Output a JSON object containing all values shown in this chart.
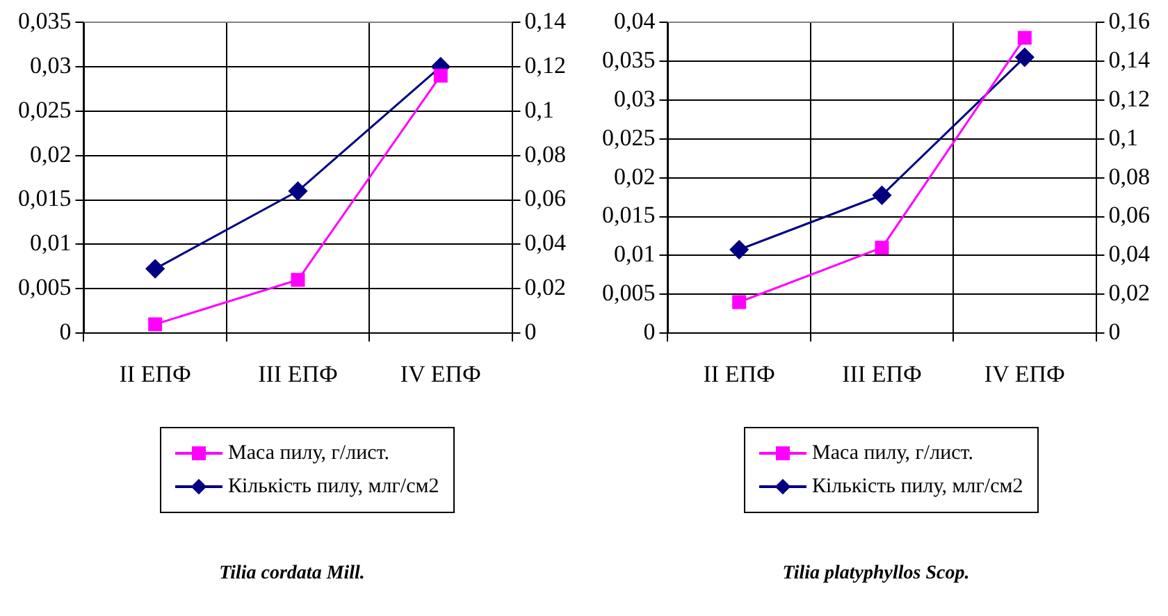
{
  "chart_data": [
    {
      "type": "line",
      "categories": [
        "II ЕПФ",
        "III ЕПФ",
        "IV ЕПФ"
      ],
      "ylim": [
        0,
        0.035
      ],
      "yticks": [
        {
          "value": 0,
          "label": "0"
        },
        {
          "value": 0.005,
          "label": "0,005"
        },
        {
          "value": 0.01,
          "label": "0,01"
        },
        {
          "value": 0.015,
          "label": "0,015"
        },
        {
          "value": 0.02,
          "label": "0,02"
        },
        {
          "value": 0.025,
          "label": "0,025"
        },
        {
          "value": 0.03,
          "label": "0,03"
        },
        {
          "value": 0.035,
          "label": "0,035"
        }
      ],
      "y2lim": [
        0,
        0.14
      ],
      "y2ticks": [
        {
          "value": 0,
          "label": "0"
        },
        {
          "value": 0.02,
          "label": "0,02"
        },
        {
          "value": 0.04,
          "label": "0,04"
        },
        {
          "value": 0.06,
          "label": "0,06"
        },
        {
          "value": 0.08,
          "label": "0,08"
        },
        {
          "value": 0.1,
          "label": "0,1"
        },
        {
          "value": 0.12,
          "label": "0,12"
        },
        {
          "value": 0.14,
          "label": "0,14"
        }
      ],
      "grid": true,
      "legend": "bottom",
      "line_style": "solid",
      "annotations": [
        "Tilia cordata Mill."
      ],
      "series": [
        {
          "name": "Маса пилу, г/лист.",
          "color": "#ff00ff",
          "marker": "square",
          "values": [
            0.001,
            0.006,
            0.029
          ]
        },
        {
          "name": "Кількість пилу, млг/см2",
          "color": "#000080",
          "marker": "diamond",
          "axis": "y2",
          "values": [
            0.029,
            0.064,
            0.12
          ]
        }
      ]
    },
    {
      "type": "line",
      "categories": [
        "II ЕПФ",
        "III ЕПФ",
        "IV ЕПФ"
      ],
      "ylim": [
        0,
        0.04
      ],
      "yticks": [
        {
          "value": 0,
          "label": "0"
        },
        {
          "value": 0.005,
          "label": "0,005"
        },
        {
          "value": 0.01,
          "label": "0,01"
        },
        {
          "value": 0.015,
          "label": "0,015"
        },
        {
          "value": 0.02,
          "label": "0,02"
        },
        {
          "value": 0.025,
          "label": "0,025"
        },
        {
          "value": 0.03,
          "label": "0,03"
        },
        {
          "value": 0.035,
          "label": "0,035"
        },
        {
          "value": 0.04,
          "label": "0,04"
        }
      ],
      "y2lim": [
        0,
        0.16
      ],
      "y2ticks": [
        {
          "value": 0,
          "label": "0"
        },
        {
          "value": 0.02,
          "label": "0,02"
        },
        {
          "value": 0.04,
          "label": "0,04"
        },
        {
          "value": 0.06,
          "label": "0,06"
        },
        {
          "value": 0.08,
          "label": "0,08"
        },
        {
          "value": 0.1,
          "label": "0,1"
        },
        {
          "value": 0.12,
          "label": "0,12"
        },
        {
          "value": 0.14,
          "label": "0,14"
        },
        {
          "value": 0.16,
          "label": "0,16"
        }
      ],
      "grid": true,
      "legend": "bottom",
      "line_style": "solid",
      "annotations": [
        "Tilia platyphyllos Scop."
      ],
      "series": [
        {
          "name": "Маса пилу, г/лист.",
          "color": "#ff00ff",
          "marker": "square",
          "values": [
            0.004,
            0.011,
            0.038
          ]
        },
        {
          "name": "Кількість пилу, млг/см2",
          "color": "#000080",
          "marker": "diamond",
          "axis": "y2",
          "values": [
            0.043,
            0.071,
            0.142
          ]
        }
      ]
    }
  ]
}
